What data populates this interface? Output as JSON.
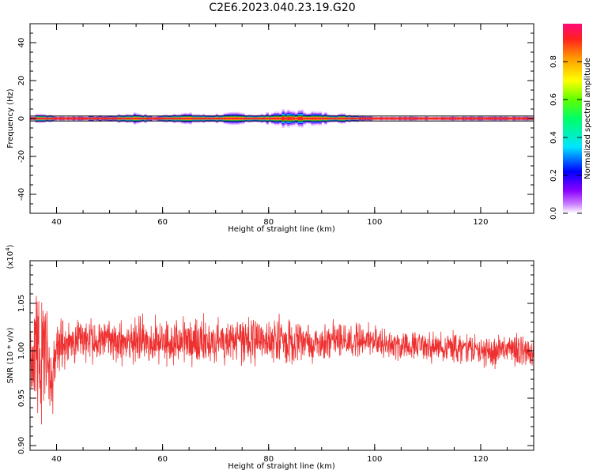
{
  "title": "C2E6.2023.040.23.19.G20",
  "chart_data": [
    {
      "type": "heatmap",
      "xlabel": "Height of straight line (km)",
      "ylabel": "Frequency (Hz)",
      "xlim": [
        35,
        130
      ],
      "ylim": [
        -50,
        50
      ],
      "xticks": [
        40,
        60,
        80,
        100,
        120
      ],
      "yticks": [
        40,
        20,
        0,
        -20,
        -40
      ],
      "colorbar": {
        "label": "Normalized spectral amplitude",
        "range": [
          0,
          1
        ],
        "ticks": [
          "0.0",
          "0.2",
          "0.4",
          "0.6",
          "0.8"
        ]
      },
      "band_center_hz": 0,
      "band_width_hz": [
        [
          36,
          3
        ],
        [
          40,
          1
        ],
        [
          50,
          1.5
        ],
        [
          55,
          3
        ],
        [
          58,
          1
        ],
        [
          63,
          3
        ],
        [
          68,
          2
        ],
        [
          74,
          3
        ],
        [
          78,
          2
        ],
        [
          82,
          4
        ],
        [
          86,
          4
        ],
        [
          90,
          3
        ],
        [
          96,
          2
        ],
        [
          100,
          1
        ],
        [
          130,
          1
        ]
      ]
    },
    {
      "type": "line",
      "xlabel": "Height of straight line (km)",
      "ylabel": "SNR (10 * v/v)",
      "yscale_label": "(x10",
      "yscale_exp": "4",
      "xlim": [
        35,
        130
      ],
      "ylim": [
        0.895,
        1.095
      ],
      "xticks": [
        40,
        60,
        80,
        100,
        120
      ],
      "yticks": [
        "0.90",
        "0.95",
        "1.00",
        "1.05"
      ],
      "series": [
        {
          "color": "#ee3030",
          "x": [
            35,
            36,
            37,
            38,
            39,
            40,
            42,
            45,
            50,
            55,
            60,
            65,
            70,
            75,
            80,
            85,
            90,
            95,
            100,
            105,
            110,
            115,
            120,
            125,
            128,
            130
          ],
          "y": [
            0.99,
            1.0,
            0.98,
            1.01,
            0.96,
            1.0,
            1.01,
            1.01,
            1.01,
            1.01,
            1.01,
            1.01,
            1.01,
            1.01,
            1.01,
            1.01,
            1.01,
            1.01,
            1.01,
            1.005,
            1.005,
            1.005,
            1.0,
            1.0,
            1.0,
            0.995
          ],
          "amplitude": [
            0.07,
            0.07,
            0.08,
            0.07,
            0.05,
            0.04,
            0.03,
            0.03,
            0.03,
            0.03,
            0.03,
            0.03,
            0.03,
            0.03,
            0.03,
            0.03,
            0.025,
            0.025,
            0.02,
            0.02,
            0.02,
            0.02,
            0.02,
            0.02,
            0.02,
            0.02
          ]
        }
      ]
    }
  ]
}
